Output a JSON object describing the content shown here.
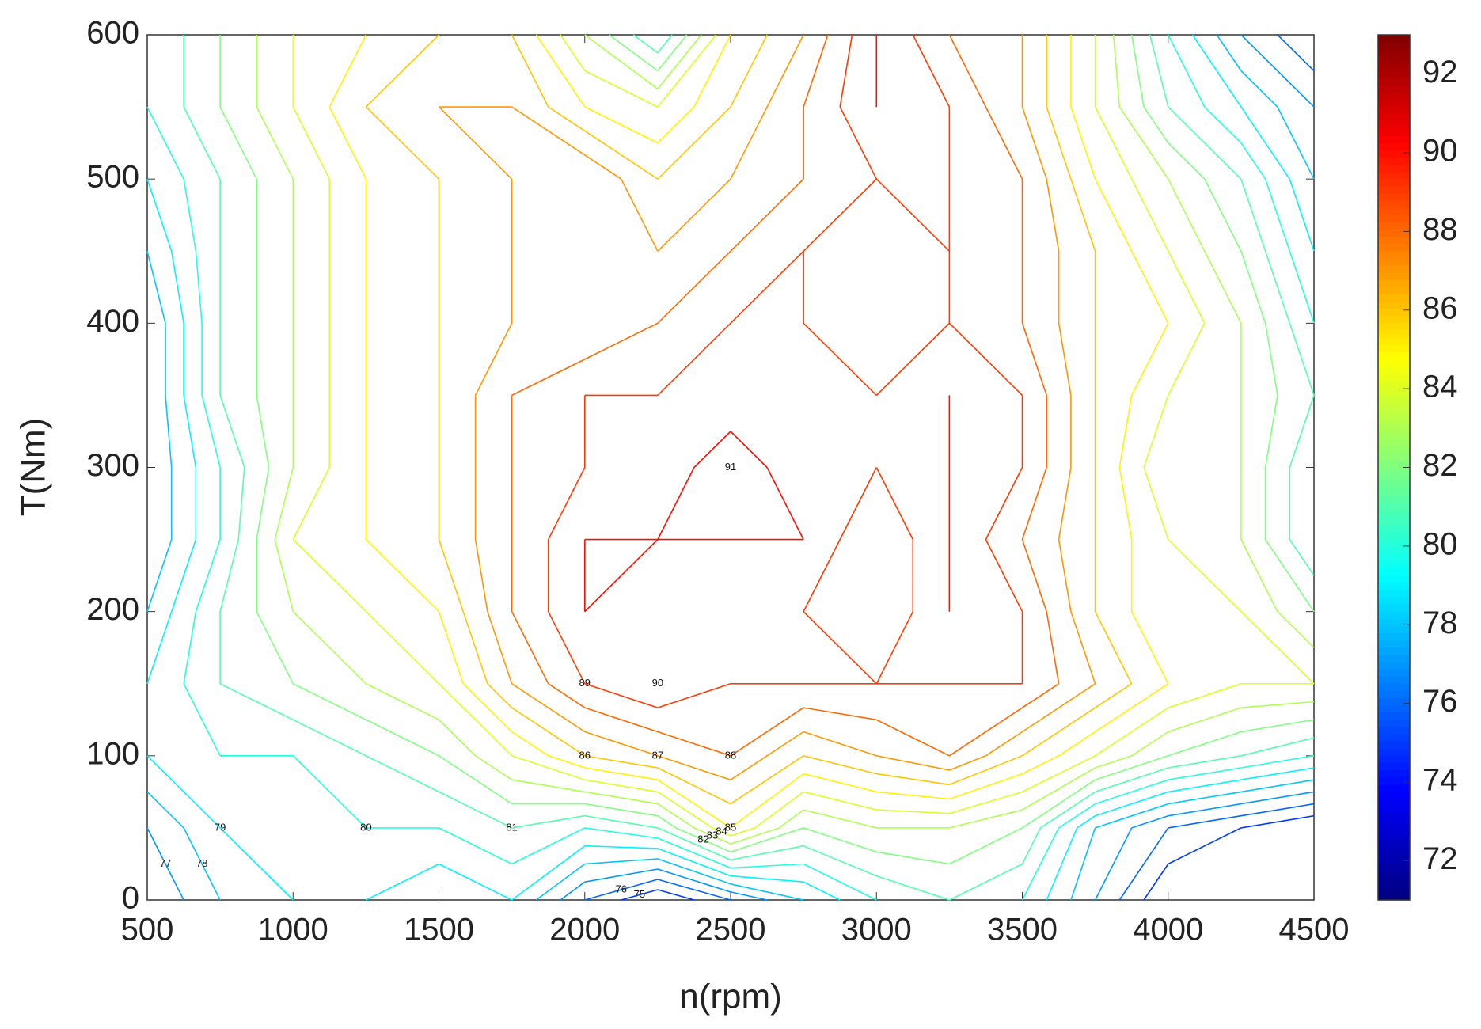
{
  "chart_data": {
    "type": "contour",
    "x_label": "n(rpm)",
    "y_label": "T(Nm)",
    "x": [
      500,
      750,
      1000,
      1250,
      1500,
      1750,
      2000,
      2250,
      2500,
      2750,
      3000,
      3250,
      3500,
      3750,
      4000,
      4250,
      4500
    ],
    "y": [
      0,
      50,
      100,
      150,
      200,
      250,
      300,
      350,
      400,
      450,
      500,
      550,
      600
    ],
    "z": [
      [
        76,
        78,
        79,
        79,
        78,
        79,
        76,
        74,
        76,
        78,
        80,
        81,
        80,
        77,
        74,
        73,
        72
      ],
      [
        77,
        79,
        79,
        80,
        80,
        81,
        80,
        81,
        85,
        82,
        83,
        83,
        82,
        78,
        76,
        75,
        74
      ],
      [
        79,
        80,
        80,
        81,
        82,
        84,
        86,
        87,
        88,
        86,
        87,
        88,
        86,
        84,
        82,
        81,
        80
      ],
      [
        79,
        81,
        82,
        83,
        84,
        87,
        89,
        90,
        89,
        89,
        89,
        89,
        89,
        87,
        85,
        84,
        84
      ],
      [
        78,
        81,
        83,
        84,
        85,
        88,
        90,
        89,
        89,
        89,
        88,
        90,
        89,
        86,
        84,
        84,
        82
      ],
      [
        77,
        80,
        84,
        85,
        86,
        88,
        90,
        90,
        90,
        90,
        88,
        90,
        88,
        86,
        84,
        83,
        80
      ],
      [
        77,
        80,
        83,
        85,
        86,
        88,
        89,
        89,
        91,
        89,
        89,
        90,
        89,
        86,
        83,
        83,
        80
      ],
      [
        77,
        81,
        83,
        85,
        86,
        88,
        89,
        89,
        89,
        89,
        89,
        90,
        89,
        86,
        84,
        83,
        81
      ],
      [
        77,
        81,
        83,
        85,
        86,
        87,
        87,
        88,
        89,
        89,
        88,
        89,
        88,
        86,
        85,
        83,
        80
      ],
      [
        78,
        81,
        83,
        85,
        86,
        87,
        87,
        87,
        88,
        89,
        88,
        89,
        88,
        86,
        84,
        82,
        79
      ],
      [
        79,
        81,
        83,
        85,
        86,
        87,
        88,
        86,
        87,
        88,
        89,
        89,
        88,
        85,
        83,
        81,
        78
      ],
      [
        80,
        82,
        84,
        86,
        87,
        87,
        85,
        84,
        86,
        88,
        90,
        89,
        87,
        84,
        81,
        79,
        77
      ],
      [
        80,
        82,
        84,
        85,
        86,
        86,
        83,
        80,
        85,
        87,
        90,
        88,
        87,
        84,
        80,
        77,
        75
      ]
    ],
    "levels": [
      75,
      76,
      77,
      78,
      79,
      80,
      81,
      82,
      83,
      84,
      85,
      86,
      87,
      88,
      89,
      90,
      91
    ],
    "colormap": "jet",
    "clim": [
      71,
      93
    ],
    "cticks": [
      72,
      74,
      76,
      78,
      80,
      82,
      84,
      86,
      88,
      90,
      92
    ],
    "xlim": [
      500,
      4500
    ],
    "xticks": [
      500,
      1000,
      1500,
      2000,
      2500,
      3000,
      3500,
      4000,
      4500
    ],
    "ylim": [
      0,
      600
    ],
    "yticks": [
      0,
      100,
      200,
      300,
      400,
      500,
      600
    ]
  }
}
